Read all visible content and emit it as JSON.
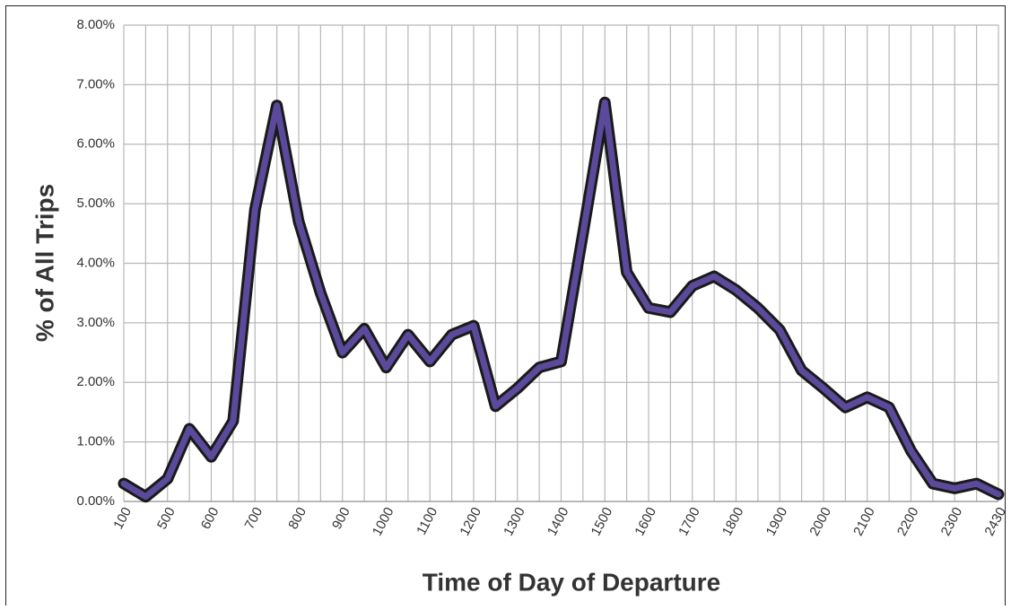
{
  "chart_data": {
    "type": "line",
    "x_label": "Time of Day of Departure",
    "y_label": "% of All Trips",
    "categories": [
      "100",
      null,
      "500",
      null,
      "600",
      null,
      "700",
      null,
      "800",
      null,
      "900",
      null,
      "1000",
      null,
      "1100",
      null,
      "1200",
      null,
      "1300",
      null,
      "1400",
      null,
      "1500",
      null,
      "1600",
      null,
      "1700",
      null,
      "1800",
      null,
      "1900",
      null,
      "2000",
      null,
      "2100",
      null,
      "2200",
      null,
      "2300",
      null,
      "2430"
    ],
    "series": [
      {
        "color": "#5b4a9b",
        "values": [
          0.3,
          0.08,
          0.38,
          1.22,
          0.75,
          1.35,
          4.9,
          6.65,
          4.7,
          3.5,
          2.5,
          2.9,
          2.25,
          2.8,
          2.35,
          2.8,
          2.95,
          1.6,
          1.9,
          2.25,
          2.35,
          4.5,
          6.7,
          3.85,
          3.25,
          3.18,
          3.62,
          3.78,
          3.55,
          3.25,
          2.88,
          2.2,
          1.9,
          1.58,
          1.75,
          1.58,
          0.85,
          0.3,
          0.22,
          0.3,
          0.12
        ]
      }
    ],
    "ylim": [
      0,
      8
    ],
    "yticks": [
      {
        "value": 0,
        "label": "0.00%"
      },
      {
        "value": 1,
        "label": "1.00%"
      },
      {
        "value": 2,
        "label": "2.00%"
      },
      {
        "value": 3,
        "label": "3.00%"
      },
      {
        "value": 4,
        "label": "4.00%"
      },
      {
        "value": 5,
        "label": "5.00%"
      },
      {
        "value": 6,
        "label": "6.00%"
      },
      {
        "value": 7,
        "label": "7.00%"
      },
      {
        "value": 8,
        "label": "8.00%"
      }
    ],
    "grid": true
  }
}
